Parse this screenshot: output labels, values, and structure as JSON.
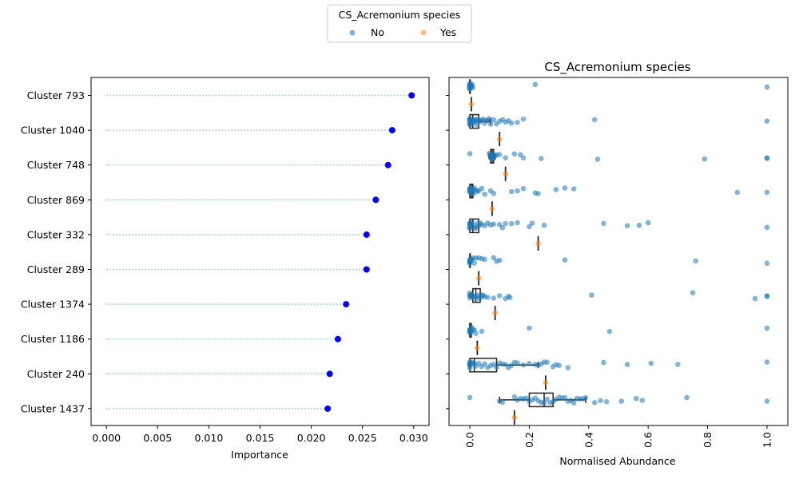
{
  "legend": {
    "title": "CS_Acremonium species",
    "entries": [
      {
        "label": "No",
        "color": "#7fb0d5"
      },
      {
        "label": "Yes",
        "color": "#f8bc85"
      }
    ]
  },
  "chart_data": [
    {
      "type": "scatter",
      "variant": "lollipop",
      "xlabel": "Importance",
      "xlim": [
        -0.0015,
        0.0315
      ],
      "xticks": [
        "0.000",
        "0.005",
        "0.010",
        "0.015",
        "0.020",
        "0.025",
        "0.030"
      ],
      "xtick_values": [
        0,
        0.005,
        0.01,
        0.015,
        0.02,
        0.025,
        0.03
      ],
      "categories": [
        "Cluster 793",
        "Cluster 1040",
        "Cluster 748",
        "Cluster 869",
        "Cluster 332",
        "Cluster 289",
        "Cluster 1374",
        "Cluster 1186",
        "Cluster 240",
        "Cluster 1437"
      ],
      "values": [
        0.0298,
        0.0279,
        0.0275,
        0.0263,
        0.0254,
        0.0254,
        0.0234,
        0.0226,
        0.0218,
        0.0216
      ],
      "marker_color": "#0000ff",
      "stem_color": "#89c4e6"
    },
    {
      "type": "scatter",
      "variant": "box-strip",
      "title": "CS_Acremonium species",
      "xlabel": "Normalised Abundance",
      "xlim": [
        -0.07,
        1.07
      ],
      "xticks": [
        "0.0",
        "0.2",
        "0.4",
        "0.6",
        "0.8",
        "1.0"
      ],
      "xtick_values": [
        0,
        0.2,
        0.4,
        0.6,
        0.8,
        1.0
      ],
      "categories": [
        "Cluster 793",
        "Cluster 1040",
        "Cluster 748",
        "Cluster 869",
        "Cluster 332",
        "Cluster 289",
        "Cluster 1374",
        "Cluster 1186",
        "Cluster 240",
        "Cluster 1437"
      ],
      "groups": [
        {
          "q1": 0.0,
          "median": 0.0,
          "q3": 0.0,
          "wlo": 0.0,
          "whi": 0.0,
          "yes": 0.005,
          "no": [
            0,
            0,
            0,
            0,
            0,
            0,
            0,
            0,
            0,
            0,
            0,
            0,
            0.002,
            0.004,
            0.006,
            0.008,
            0.01,
            0.22,
            1.0
          ]
        },
        {
          "q1": 0.0,
          "median": 0.01,
          "q3": 0.03,
          "wlo": 0.0,
          "whi": 0.07,
          "yes": 0.1,
          "no": [
            0,
            0,
            0,
            0,
            0,
            0,
            0,
            0.003,
            0.006,
            0.01,
            0.012,
            0.015,
            0.018,
            0.02,
            0.024,
            0.028,
            0.03,
            0.035,
            0.04,
            0.045,
            0.05,
            0.055,
            0.06,
            0.065,
            0.07,
            0.08,
            0.09,
            0.1,
            0.11,
            0.12,
            0.13,
            0.14,
            0.16,
            0.18,
            0.42,
            1.0
          ]
        },
        {
          "q1": 0.07,
          "median": 0.075,
          "q3": 0.08,
          "wlo": 0.065,
          "whi": 0.085,
          "yes": 0.12,
          "no": [
            0,
            0.065,
            0.068,
            0.07,
            0.072,
            0.074,
            0.075,
            0.076,
            0.077,
            0.078,
            0.08,
            0.082,
            0.085,
            0.09,
            0.1,
            0.12,
            0.15,
            0.17,
            0.18,
            0.24,
            0.43,
            0.79,
            1.0,
            1.0
          ]
        },
        {
          "q1": 0.0,
          "median": 0.005,
          "q3": 0.01,
          "wlo": 0.0,
          "whi": 0.01,
          "yes": 0.075,
          "no": [
            0,
            0,
            0,
            0,
            0,
            0,
            0.003,
            0.005,
            0.008,
            0.01,
            0.012,
            0.015,
            0.02,
            0.025,
            0.03,
            0.04,
            0.05,
            0.07,
            0.08,
            0.14,
            0.16,
            0.18,
            0.22,
            0.23,
            0.29,
            0.32,
            0.35,
            0.9,
            1.0
          ]
        },
        {
          "q1": 0.0,
          "median": 0.01,
          "q3": 0.03,
          "wlo": 0.0,
          "whi": 0.03,
          "yes": 0.23,
          "no": [
            0,
            0,
            0,
            0,
            0,
            0,
            0.004,
            0.008,
            0.012,
            0.016,
            0.02,
            0.025,
            0.03,
            0.035,
            0.04,
            0.05,
            0.06,
            0.07,
            0.08,
            0.1,
            0.11,
            0.12,
            0.14,
            0.16,
            0.2,
            0.21,
            0.25,
            0.45,
            0.53,
            0.57,
            0.6,
            1.0
          ]
        },
        {
          "q1": 0.0,
          "median": 0.0,
          "q3": 0.0,
          "wlo": 0.0,
          "whi": 0.0,
          "yes": 0.03,
          "no": [
            0,
            0,
            0,
            0,
            0,
            0,
            0.003,
            0.006,
            0.01,
            0.015,
            0.02,
            0.03,
            0.04,
            0.05,
            0.08,
            0.09,
            0.1,
            0.32,
            0.76,
            1.0
          ]
        },
        {
          "q1": 0.01,
          "median": 0.02,
          "q3": 0.035,
          "wlo": 0.005,
          "whi": 0.035,
          "yes": 0.085,
          "no": [
            0,
            0,
            0,
            0,
            0.005,
            0.01,
            0.015,
            0.02,
            0.025,
            0.03,
            0.035,
            0.04,
            0.045,
            0.05,
            0.06,
            0.08,
            0.1,
            0.12,
            0.13,
            0.135,
            0.41,
            0.75,
            0.96,
            1.0,
            1.0
          ]
        },
        {
          "q1": 0.0,
          "median": 0.0,
          "q3": 0.005,
          "wlo": 0.0,
          "whi": 0.005,
          "yes": 0.025,
          "no": [
            0,
            0,
            0,
            0,
            0,
            0.002,
            0.004,
            0.006,
            0.01,
            0.015,
            0.02,
            0.04,
            0.2,
            0.47,
            1.0
          ]
        },
        {
          "q1": 0.0,
          "median": 0.015,
          "q3": 0.09,
          "wlo": 0.0,
          "whi": 0.23,
          "yes": 0.255,
          "no": [
            0,
            0,
            0,
            0,
            0,
            0,
            0.005,
            0.01,
            0.015,
            0.02,
            0.03,
            0.04,
            0.05,
            0.06,
            0.07,
            0.08,
            0.09,
            0.1,
            0.11,
            0.12,
            0.13,
            0.14,
            0.15,
            0.16,
            0.18,
            0.2,
            0.22,
            0.23,
            0.24,
            0.25,
            0.26,
            0.28,
            0.29,
            0.3,
            0.33,
            0.45,
            0.53,
            0.61,
            0.7,
            1.0
          ]
        },
        {
          "q1": 0.2,
          "median": 0.25,
          "q3": 0.28,
          "wlo": 0.1,
          "whi": 0.39,
          "yes": 0.15,
          "no": [
            0,
            0.1,
            0.11,
            0.15,
            0.16,
            0.17,
            0.18,
            0.19,
            0.2,
            0.21,
            0.22,
            0.23,
            0.24,
            0.25,
            0.26,
            0.27,
            0.28,
            0.29,
            0.3,
            0.31,
            0.32,
            0.33,
            0.34,
            0.35,
            0.36,
            0.37,
            0.38,
            0.39,
            0.42,
            0.44,
            0.46,
            0.51,
            0.56,
            0.58,
            0.73,
            1.0
          ]
        }
      ]
    }
  ]
}
